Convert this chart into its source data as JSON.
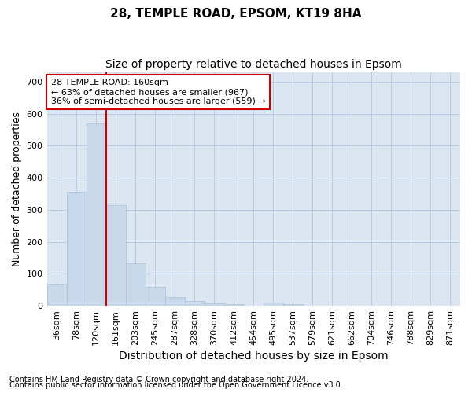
{
  "title1": "28, TEMPLE ROAD, EPSOM, KT19 8HA",
  "title2": "Size of property relative to detached houses in Epsom",
  "xlabel": "Distribution of detached houses by size in Epsom",
  "ylabel": "Number of detached properties",
  "footnote1": "Contains HM Land Registry data © Crown copyright and database right 2024.",
  "footnote2": "Contains public sector information licensed under the Open Government Licence v3.0.",
  "bin_labels": [
    "36sqm",
    "78sqm",
    "120sqm",
    "161sqm",
    "203sqm",
    "245sqm",
    "287sqm",
    "328sqm",
    "370sqm",
    "412sqm",
    "454sqm",
    "495sqm",
    "537sqm",
    "579sqm",
    "621sqm",
    "662sqm",
    "704sqm",
    "746sqm",
    "788sqm",
    "829sqm",
    "871sqm"
  ],
  "bar_values": [
    68,
    355,
    570,
    315,
    133,
    58,
    27,
    14,
    7,
    5,
    0,
    10,
    5,
    0,
    0,
    0,
    0,
    0,
    0,
    0,
    0
  ],
  "bar_color": "#c8d8eb",
  "bar_edgecolor": "#aabfd8",
  "vline_color": "#cc0000",
  "vline_bin_index": 3,
  "annotation_text": "28 TEMPLE ROAD: 160sqm\n← 63% of detached houses are smaller (967)\n36% of semi-detached houses are larger (559) →",
  "annotation_box_edgecolor": "#cc0000",
  "annotation_box_facecolor": "#ffffff",
  "ylim": [
    0,
    730
  ],
  "yticks": [
    0,
    100,
    200,
    300,
    400,
    500,
    600,
    700
  ],
  "grid_color": "#b8cce4",
  "bg_color": "#ffffff",
  "plot_bg_color": "#dce6f0",
  "title1_fontsize": 11,
  "title2_fontsize": 10,
  "xlabel_fontsize": 10,
  "ylabel_fontsize": 9,
  "tick_fontsize": 8,
  "footnote_fontsize": 7
}
